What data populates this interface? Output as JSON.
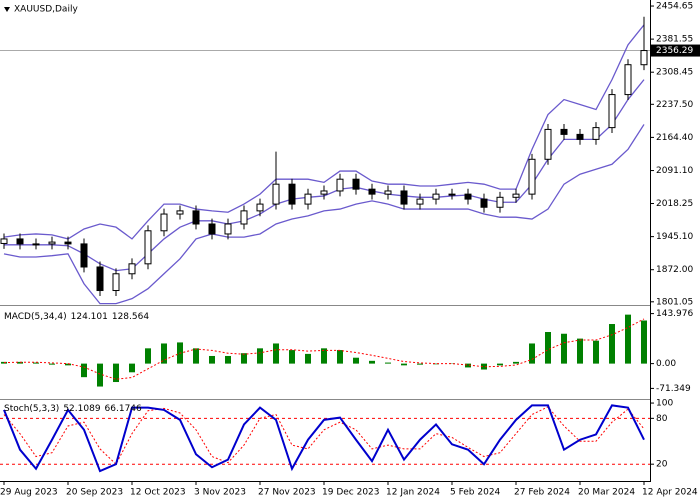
{
  "chart_data": [
    {
      "type": "candlestick",
      "title": "XAUUSD,Daily",
      "categories": [
        "29 Aug 2023",
        null,
        null,
        null,
        "20 Sep 2023",
        null,
        null,
        null,
        "12 Oct 2023",
        null,
        null,
        null,
        "3 Nov 2023",
        null,
        null,
        null,
        "27 Nov 2023",
        null,
        null,
        null,
        "19 Dec 2023",
        null,
        null,
        null,
        "12 Jan 2024",
        null,
        null,
        null,
        "5 Feb 2024",
        null,
        null,
        null,
        "27 Feb 2024",
        null,
        null,
        null,
        "20 Mar 2024",
        null,
        null,
        null,
        "12 Apr 2024"
      ],
      "open": [
        1930,
        1940,
        1929,
        1929,
        1933,
        1929,
        1878,
        1826,
        1863,
        1885,
        1958,
        1995,
        2002,
        1973,
        1951,
        1973,
        2002,
        2017,
        2061,
        2017,
        2039,
        2046,
        2072,
        2050,
        2039,
        2046,
        2017,
        2028,
        2039,
        2039,
        2028,
        2010,
        2032,
        2039,
        2116,
        2182,
        2171,
        2160,
        2186,
        2259,
        2325
      ],
      "high": [
        1952,
        1952,
        1941,
        1945,
        1945,
        1941,
        1890,
        1875,
        1897,
        1970,
        2007,
        2014,
        2014,
        1985,
        1985,
        2014,
        2029,
        2133,
        2073,
        2051,
        2058,
        2084,
        2084,
        2062,
        2058,
        2058,
        2040,
        2051,
        2051,
        2051,
        2040,
        2044,
        2051,
        2128,
        2194,
        2194,
        2183,
        2198,
        2271,
        2337,
        2431
      ],
      "low": [
        1918,
        1917,
        1917,
        1917,
        1917,
        1866,
        1814,
        1814,
        1851,
        1873,
        1946,
        1983,
        1961,
        1939,
        1939,
        1961,
        1990,
        2005,
        2005,
        2005,
        2027,
        2034,
        2038,
        2027,
        2027,
        2005,
        2005,
        2016,
        2027,
        2016,
        1998,
        1998,
        2020,
        2027,
        2104,
        2159,
        2148,
        2148,
        2174,
        2247,
        2313
      ],
      "close": [
        1940,
        1929,
        1929,
        1933,
        1929,
        1878,
        1826,
        1863,
        1885,
        1958,
        1995,
        2002,
        1973,
        1951,
        1973,
        2002,
        2017,
        2061,
        2017,
        2039,
        2046,
        2072,
        2050,
        2039,
        2046,
        2017,
        2028,
        2039,
        2039,
        2028,
        2010,
        2032,
        2039,
        2116,
        2182,
        2171,
        2160,
        2186,
        2259,
        2325,
        2356.29
      ],
      "up_color": "#ffffff",
      "down_color": "#000000",
      "bollinger": {
        "color": "#6a5acd",
        "upper": [
          1944,
          1949,
          1951,
          1949,
          1940,
          1962,
          1973,
          1966,
          1940,
          1980,
          2017,
          2017,
          2006,
          2002,
          1999,
          2017,
          2039,
          2072,
          2072,
          2072,
          2065,
          2090,
          2090,
          2068,
          2061,
          2061,
          2057,
          2057,
          2061,
          2065,
          2061,
          2050,
          2050,
          2138,
          2215,
          2248,
          2237,
          2226,
          2292,
          2369,
          2413
        ],
        "middle": [
          1927,
          1927,
          1927,
          1927,
          1925,
          1907,
          1885,
          1870,
          1874,
          1907,
          1940,
          1966,
          1980,
          1980,
          1973,
          1980,
          1995,
          2017,
          2028,
          2032,
          2035,
          2050,
          2054,
          2046,
          2039,
          2035,
          2032,
          2032,
          2035,
          2037,
          2028,
          2021,
          2021,
          2061,
          2116,
          2160,
          2160,
          2160,
          2193,
          2248,
          2292
        ],
        "lower": [
          1907,
          1900,
          1900,
          1903,
          1907,
          1841,
          1797,
          1797,
          1808,
          1830,
          1863,
          1896,
          1940,
          1951,
          1944,
          1944,
          1951,
          1973,
          1984,
          1991,
          2002,
          2006,
          2017,
          2024,
          2017,
          2006,
          2006,
          2006,
          2006,
          2006,
          1995,
          1988,
          1988,
          1984,
          2006,
          2061,
          2083,
          2094,
          2105,
          2138,
          2193
        ]
      },
      "ylim": [
        1794,
        2468
      ],
      "yticks": [
        2454.65,
        2381.55,
        2308.45,
        {
          "value": 2237.5,
          "label": "2237.50"
        },
        {
          "value": 2164.4,
          "label": "2164.40"
        },
        {
          "value": 2091.1,
          "label": "2091.10"
        },
        2018.25,
        {
          "value": 1945.1,
          "label": "1945.10"
        },
        {
          "value": 1872,
          "label": "1872.00"
        },
        1801.05
      ]
    },
    {
      "type": "macd",
      "title": "MACD(5,34,4)",
      "histogram": [
        5,
        5,
        3,
        -3,
        -5,
        -39,
        -66,
        -53,
        -25,
        44,
        58,
        61,
        44,
        22,
        22,
        30,
        44,
        58,
        39,
        28,
        44,
        39,
        17,
        8,
        3,
        -5,
        -3,
        -2,
        1,
        -11,
        -17,
        -5,
        5,
        58,
        91,
        86,
        72,
        66,
        114,
        141,
        124.101
      ],
      "signal": [
        3,
        4,
        4,
        2,
        0,
        -10,
        -30,
        -45,
        -40,
        -15,
        10,
        30,
        42,
        38,
        30,
        27,
        31,
        40,
        40,
        36,
        38,
        38,
        32,
        24,
        15,
        6,
        2,
        0,
        0,
        -4,
        -9,
        -8,
        -4,
        12,
        40,
        60,
        68,
        68,
        83,
        104,
        128.564
      ],
      "color": "#008000",
      "signal_color": "#ff0000",
      "ylim": [
        -99,
        163
      ],
      "yticks": [
        143.976,
        {
          "value": 0,
          "label": "0.00"
        },
        -71.349
      ]
    },
    {
      "type": "stoch",
      "title": "Stoch(5,3,3)",
      "main": [
        91,
        39,
        14,
        52,
        91,
        65,
        11,
        20,
        94,
        94,
        91,
        78,
        33,
        16,
        26,
        72,
        94,
        78,
        14,
        52,
        78,
        81,
        52,
        24,
        65,
        26,
        52,
        72,
        46,
        39,
        20,
        52,
        78,
        97,
        97,
        39,
        52,
        59,
        97,
        94,
        52.1089
      ],
      "signal": [
        85,
        60,
        30,
        35,
        70,
        75,
        40,
        20,
        60,
        90,
        93,
        87,
        65,
        30,
        22,
        45,
        80,
        85,
        45,
        40,
        65,
        75,
        65,
        40,
        45,
        40,
        40,
        60,
        55,
        42,
        30,
        35,
        60,
        85,
        95,
        70,
        50,
        50,
        75,
        92,
        66.1746
      ],
      "main_color": "#0000cd",
      "signal_color": "#ff0000",
      "levels": [
        80,
        20
      ],
      "ylim": [
        -2,
        104
      ],
      "yticks": [
        100,
        80,
        20
      ]
    }
  ]
}
